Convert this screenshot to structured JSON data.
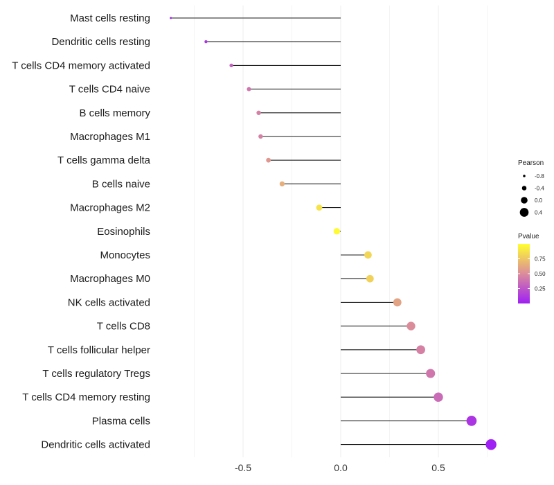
{
  "chart_data": {
    "type": "lollipop",
    "title": "",
    "xlabel": "",
    "ylabel": "",
    "xlim": [
      -0.88,
      0.8
    ],
    "xticks": [
      -0.5,
      0.0,
      0.5
    ],
    "xtick_labels": [
      "-0.5",
      "0.0",
      "0.5"
    ],
    "grid": true,
    "categories": [
      "Mast cells resting",
      "Dendritic cells resting",
      "T cells CD4 memory activated",
      "T cells CD4 naive",
      "B cells memory",
      "Macrophages M1",
      "T cells gamma delta",
      "B cells naive",
      "Macrophages M2",
      "Eosinophils",
      "Monocytes",
      "Macrophages M0",
      "NK cells activated",
      "T cells CD8",
      "T cells follicular helper",
      "T cells regulatory  Tregs ",
      "T cells CD4 memory resting",
      "Plasma cells",
      "Dendritic cells activated"
    ],
    "pearson": [
      -0.87,
      -0.69,
      -0.56,
      -0.47,
      -0.42,
      -0.41,
      -0.37,
      -0.3,
      -0.11,
      -0.02,
      0.14,
      0.15,
      0.29,
      0.36,
      0.41,
      0.46,
      0.5,
      0.67,
      0.77
    ],
    "pvalue": [
      0.01,
      0.1,
      0.3,
      0.4,
      0.45,
      0.45,
      0.55,
      0.65,
      0.88,
      0.98,
      0.82,
      0.8,
      0.6,
      0.5,
      0.45,
      0.4,
      0.35,
      0.1,
      0.01
    ],
    "size_legend": {
      "title": "Pearson",
      "values": [
        -0.8,
        -0.4,
        0.0,
        0.4
      ],
      "labels": [
        "-0.8",
        "-0.4",
        "0.0",
        "0.4"
      ]
    },
    "color_legend": {
      "title": "Pvalue",
      "ticks": [
        0.75,
        0.5,
        0.25
      ],
      "tick_labels": [
        "0.75",
        "0.50",
        "0.25"
      ],
      "range": [
        0.0,
        1.0
      ],
      "low_color": "#9F1FF5",
      "mid_color": "#DB8C9B",
      "high_color": "#FFFF2F"
    }
  }
}
